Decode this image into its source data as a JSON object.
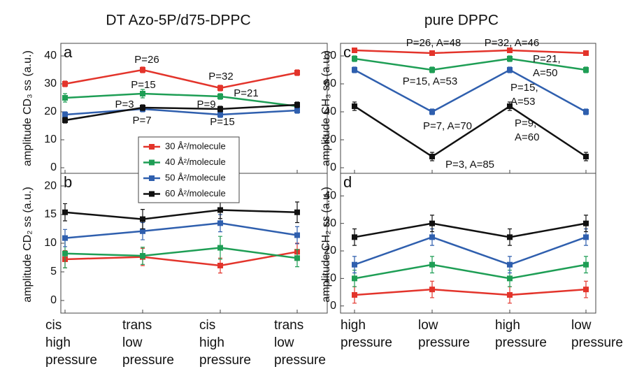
{
  "chart_data": [
    {
      "type": "line",
      "panel": "a",
      "title": "DT Azo-5P/d75-DPPC",
      "ylabel": "amplitude CD₃ ss (a.u.)",
      "ylim": [
        -2,
        44.5
      ],
      "yticks": [
        0,
        10,
        20,
        30,
        40
      ],
      "series": [
        {
          "name": "30 Å²/molecule",
          "color": "#e3342b",
          "values": [
            30,
            35,
            28.5,
            34
          ],
          "errors": [
            1,
            1,
            1,
            1
          ]
        },
        {
          "name": "40 Å²/molecule",
          "color": "#1e9e55",
          "values": [
            25,
            26.5,
            25.5,
            22
          ],
          "errors": [
            1.5,
            1.5,
            1,
            1
          ]
        },
        {
          "name": "50 Å²/molecule",
          "color": "#2f5fae",
          "values": [
            19,
            21,
            19,
            20.5
          ],
          "errors": [
            1,
            1,
            1,
            1
          ]
        },
        {
          "name": "60 Å²/molecule",
          "color": "#111111",
          "values": [
            17,
            21.5,
            21,
            22.5
          ],
          "errors": [
            1,
            1,
            1,
            1
          ]
        }
      ],
      "annotations": [
        [
          "P=26"
        ],
        [
          "P=15"
        ],
        [
          "P=3"
        ],
        [
          "P=7"
        ],
        [
          "P=32"
        ],
        [
          "P=9"
        ],
        [
          "P=15"
        ],
        [
          "P=21"
        ]
      ]
    },
    {
      "type": "line",
      "panel": "b",
      "ylabel": "amplitude CD₂ ss (a.u.)",
      "ylim": [
        -2.2,
        22.2
      ],
      "yticks": [
        0,
        5,
        10,
        15,
        20
      ],
      "categories": [
        [
          "cis",
          "high",
          "pressure"
        ],
        [
          "trans",
          "low",
          "pressure"
        ],
        [
          "cis",
          "high",
          "pressure"
        ],
        [
          "trans",
          "low",
          "pressure"
        ]
      ],
      "series": [
        {
          "color": "#e3342b",
          "values": [
            7.2,
            7.6,
            6.1,
            8.5
          ],
          "errors": [
            1.5,
            1.5,
            1.3,
            1.5
          ]
        },
        {
          "color": "#1e9e55",
          "values": [
            8.2,
            7.8,
            9.2,
            7.4
          ],
          "errors": [
            2.5,
            1.5,
            2,
            1.5
          ]
        },
        {
          "color": "#2f5fae",
          "values": [
            10.9,
            12.1,
            13.5,
            11.4
          ],
          "errors": [
            1.5,
            1.5,
            1.5,
            1.5
          ]
        },
        {
          "color": "#111111",
          "values": [
            15.4,
            14.2,
            15.8,
            15.4
          ],
          "errors": [
            1.5,
            1.7,
            1.5,
            1.8
          ]
        }
      ]
    },
    {
      "type": "line",
      "panel": "c",
      "title": "pure DPPC",
      "ylabel": "amplitude CH₃ ss (a.u.)",
      "ylim": [
        -4,
        89
      ],
      "yticks": [
        0,
        20,
        40,
        60,
        80
      ],
      "series": [
        {
          "color": "#e3342b",
          "values": [
            84,
            82,
            84,
            82
          ],
          "errors": [
            1,
            1,
            1,
            1
          ]
        },
        {
          "color": "#1e9e55",
          "values": [
            78,
            70,
            78,
            70
          ],
          "errors": [
            2,
            2,
            2,
            2
          ]
        },
        {
          "color": "#2f5fae",
          "values": [
            70,
            40,
            70,
            40
          ],
          "errors": [
            2,
            2,
            2,
            2
          ]
        },
        {
          "color": "#111111",
          "values": [
            44,
            8,
            44,
            8
          ],
          "errors": [
            3,
            3,
            3,
            3
          ]
        }
      ],
      "annotations": [
        [
          "P=26, A=48"
        ],
        [
          "P=32, A=46"
        ],
        [
          "P=21,",
          "A=50"
        ],
        [
          "P=15, A=53"
        ],
        [
          "P=15,",
          "A=53"
        ],
        [
          "P=7, A=70"
        ],
        [
          "P=9,",
          "A=60"
        ],
        [
          "P=3, A=85"
        ]
      ]
    },
    {
      "type": "line",
      "panel": "d",
      "ylabel": "amplitude CH₂ ss (a.u.)",
      "ylim": [
        -2.6,
        48.2
      ],
      "yticks": [
        0,
        10,
        20,
        30,
        40
      ],
      "categories": [
        [
          "high",
          "pressure"
        ],
        [
          "low",
          "pressure"
        ],
        [
          "high",
          "pressure"
        ],
        [
          "low",
          "pressure"
        ]
      ],
      "series": [
        {
          "color": "#e3342b",
          "values": [
            4,
            6,
            4,
            6
          ],
          "errors": [
            3,
            3,
            3,
            3
          ]
        },
        {
          "color": "#1e9e55",
          "values": [
            10,
            15,
            10,
            15
          ],
          "errors": [
            3,
            3,
            3,
            3
          ]
        },
        {
          "color": "#2f5fae",
          "values": [
            15,
            25,
            15,
            25
          ],
          "errors": [
            3,
            3,
            3,
            3
          ]
        },
        {
          "color": "#111111",
          "values": [
            25,
            30,
            25,
            30
          ],
          "errors": [
            3,
            3,
            3,
            3
          ]
        }
      ]
    }
  ]
}
